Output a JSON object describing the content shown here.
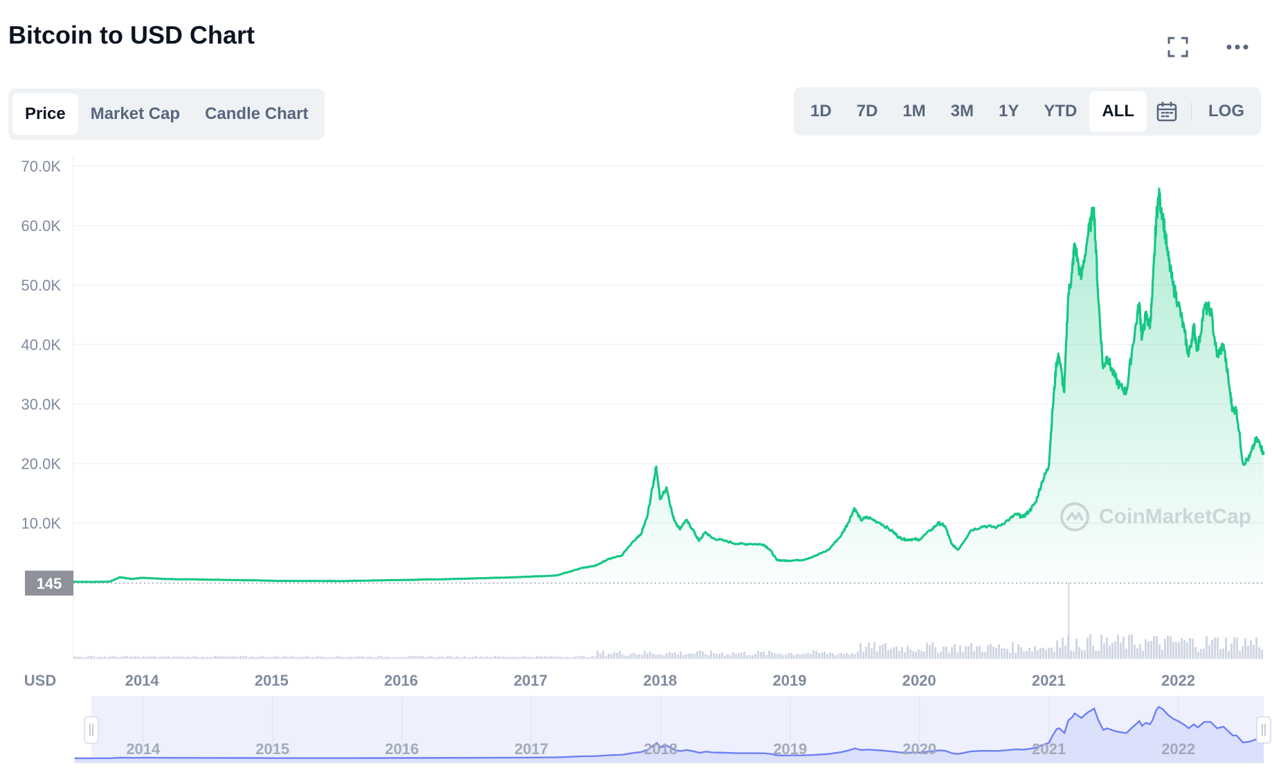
{
  "header": {
    "title": "Bitcoin to USD Chart"
  },
  "tabs": [
    {
      "label": "Price",
      "active": true
    },
    {
      "label": "Market Cap",
      "active": false
    },
    {
      "label": "Candle Chart",
      "active": false
    }
  ],
  "ranges": [
    {
      "label": "1D",
      "active": false
    },
    {
      "label": "7D",
      "active": false
    },
    {
      "label": "1M",
      "active": false
    },
    {
      "label": "3M",
      "active": false
    },
    {
      "label": "1Y",
      "active": false
    },
    {
      "label": "YTD",
      "active": false
    },
    {
      "label": "ALL",
      "active": true
    }
  ],
  "scale_toggle": "LOG",
  "icons": {
    "fullscreen": "fullscreen-icon",
    "more": "more-icon",
    "calendar": "calendar-icon"
  },
  "watermark": "CoinMarketCap",
  "colors": {
    "line": "#16c784",
    "navigator": "#6e7ff5",
    "volume": "#d0d6e3",
    "price_tag": "#8e9199"
  },
  "chart_data": {
    "type": "area",
    "currency_label": "USD",
    "ylim": [
      0,
      70000
    ],
    "y_ticks": [
      "70.0K",
      "60.0K",
      "50.0K",
      "40.0K",
      "30.0K",
      "20.0K",
      "10.0K"
    ],
    "y_tick_values": [
      70000,
      60000,
      50000,
      40000,
      30000,
      20000,
      10000
    ],
    "x_ticks": [
      "2014",
      "2015",
      "2016",
      "2017",
      "2018",
      "2019",
      "2020",
      "2021",
      "2022"
    ],
    "x_tick_values": [
      2014.0,
      2015.0,
      2016.0,
      2017.0,
      2018.0,
      2019.0,
      2020.0,
      2021.0,
      2022.0
    ],
    "xlim": [
      2013.47,
      2022.66
    ],
    "current_price_label": "145",
    "current_price_value": 145,
    "series": [
      {
        "x": [
          2013.47,
          2013.6,
          2013.75,
          2013.83,
          2013.92,
          2014.0,
          2014.2,
          2014.5,
          2014.8,
          2015.0,
          2015.5,
          2016.0,
          2016.5,
          2017.0,
          2017.2,
          2017.4,
          2017.5,
          2017.6,
          2017.7,
          2017.8,
          2017.85,
          2017.9,
          2017.95,
          2017.97,
          2018.0,
          2018.05,
          2018.1,
          2018.15,
          2018.2,
          2018.25,
          2018.3,
          2018.35,
          2018.4,
          2018.5,
          2018.6,
          2018.7,
          2018.8,
          2018.85,
          2018.9,
          2018.95,
          2019.0,
          2019.1,
          2019.2,
          2019.3,
          2019.4,
          2019.45,
          2019.5,
          2019.55,
          2019.6,
          2019.7,
          2019.8,
          2019.85,
          2019.9,
          2019.95,
          2020.0,
          2020.1,
          2020.15,
          2020.2,
          2020.25,
          2020.3,
          2020.4,
          2020.5,
          2020.6,
          2020.7,
          2020.75,
          2020.8,
          2020.85,
          2020.9,
          2020.95,
          2021.0,
          2021.03,
          2021.06,
          2021.08,
          2021.12,
          2021.15,
          2021.18,
          2021.2,
          2021.25,
          2021.3,
          2021.35,
          2021.38,
          2021.42,
          2021.45,
          2021.5,
          2021.55,
          2021.6,
          2021.65,
          2021.7,
          2021.72,
          2021.75,
          2021.78,
          2021.8,
          2021.83,
          2021.85,
          2021.88,
          2021.92,
          2021.96,
          2022.0,
          2022.05,
          2022.08,
          2022.12,
          2022.15,
          2022.2,
          2022.25,
          2022.3,
          2022.35,
          2022.4,
          2022.42,
          2022.45,
          2022.5,
          2022.55,
          2022.6,
          2022.63,
          2022.66
        ],
        "y": [
          130,
          110,
          150,
          900,
          600,
          800,
          600,
          500,
          400,
          300,
          250,
          430,
          650,
          1000,
          1200,
          2500,
          2800,
          4000,
          4500,
          7000,
          8000,
          11000,
          17000,
          19500,
          14000,
          16000,
          11000,
          9000,
          10500,
          9000,
          7000,
          8500,
          7500,
          7000,
          6500,
          6500,
          6400,
          5500,
          3800,
          3700,
          3700,
          3800,
          4500,
          5500,
          8000,
          10000,
          12500,
          10500,
          11000,
          10000,
          8500,
          7500,
          7200,
          7300,
          7200,
          9000,
          10000,
          9500,
          6500,
          5500,
          8800,
          9500,
          9300,
          10700,
          11500,
          11000,
          12000,
          13500,
          17000,
          19500,
          29000,
          37000,
          38000,
          32000,
          48000,
          52000,
          57000,
          51000,
          58000,
          63000,
          49000,
          36000,
          38000,
          35000,
          33000,
          32000,
          40000,
          47000,
          41000,
          45000,
          43000,
          48000,
          61000,
          65000,
          62000,
          55000,
          50000,
          47000,
          42000,
          38000,
          43000,
          39000,
          46000,
          46000,
          38000,
          40000,
          32000,
          29000,
          29000,
          20000,
          21000,
          24000,
          23500,
          21500
        ],
        "volume_note": "volume bars shown beneath price"
      }
    ]
  }
}
